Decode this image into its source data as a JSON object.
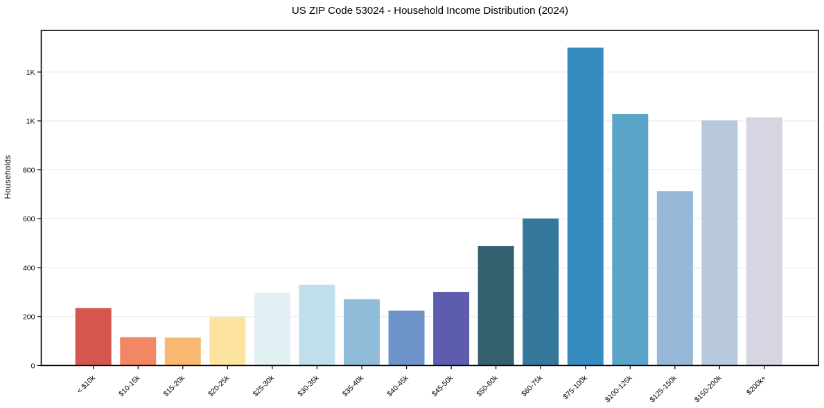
{
  "chart_data": {
    "type": "bar",
    "title": "US ZIP Code 53024 - Household Income Distribution (2024)",
    "xlabel": "",
    "ylabel": "Households",
    "categories": [
      "< $10k",
      "$10-15k",
      "$15-20k",
      "$20-25k",
      "$25-30k",
      "$30-35k",
      "$35-40k",
      "$40-45k",
      "$45-50k",
      "$50-60k",
      "$60-75k",
      "$75-100k",
      "$100-125k",
      "$125-150k",
      "$150-200k",
      "$200k+"
    ],
    "values": [
      235,
      116,
      114,
      198,
      297,
      330,
      271,
      224,
      301,
      488,
      601,
      1300,
      1028,
      713,
      1002,
      1015
    ],
    "bar_colors": [
      "#d5564e",
      "#f18765",
      "#f9b870",
      "#fde3a0",
      "#e2eff3",
      "#bfdfeb",
      "#90bcd9",
      "#6e93c9",
      "#5d5cae",
      "#35606f",
      "#36789b",
      "#368bc1",
      "#5ba5c9",
      "#94b8d6",
      "#b8c8dd",
      "#d5d6e2"
    ],
    "ylim": [
      0,
      1370
    ],
    "ytick_values": [
      0,
      200,
      400,
      600,
      800,
      1000,
      1200
    ],
    "ytick_labels": [
      "0",
      "200",
      "400",
      "600",
      "800",
      "1K",
      "1K"
    ],
    "grid": true,
    "gridline_color": "#e9e9f0",
    "axis_color": "#000000",
    "legend_position": "none",
    "background_color": "#ffffff"
  }
}
